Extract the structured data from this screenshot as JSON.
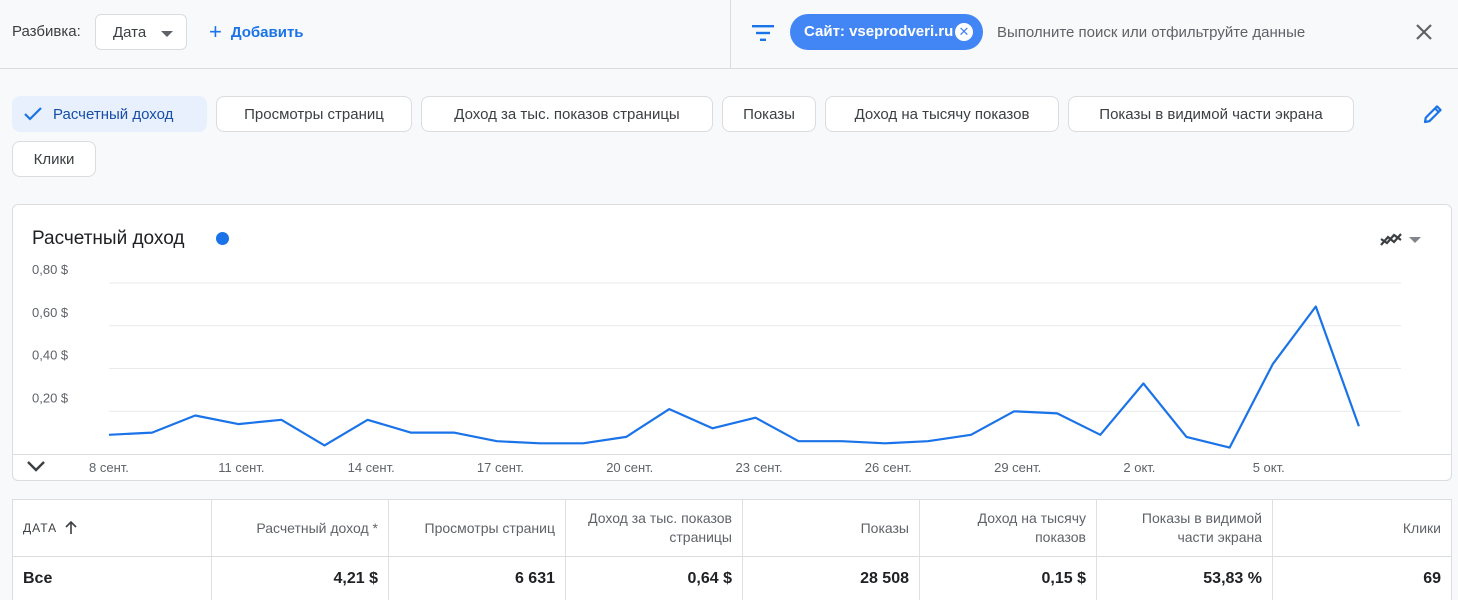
{
  "toolbar": {
    "breakdown_label": "Разбивка:",
    "date_select_value": "Дата",
    "add_label": "Добавить",
    "site_chip_label": "Сайт: vseprodveri.ru",
    "search_placeholder": "Выполните поиск или отфильтруйте данные"
  },
  "metric_chips": [
    {
      "label": "Расчетный доход",
      "selected": true
    },
    {
      "label": "Просмотры страниц",
      "selected": false
    },
    {
      "label": "Доход за тыс. показов страницы",
      "selected": false
    },
    {
      "label": "Показы",
      "selected": false
    },
    {
      "label": "Доход на тысячу показов",
      "selected": false
    },
    {
      "label": "Показы в видимой части экрана",
      "selected": false
    },
    {
      "label": "Клики",
      "selected": false
    }
  ],
  "chart_data": {
    "type": "line",
    "title": "Расчетный доход",
    "series": [
      {
        "name": "Расчетный доход",
        "color": "#1a73e8",
        "values": [
          0.09,
          0.1,
          0.18,
          0.14,
          0.16,
          0.04,
          0.16,
          0.1,
          0.1,
          0.06,
          0.05,
          0.05,
          0.08,
          0.21,
          0.12,
          0.17,
          0.06,
          0.06,
          0.05,
          0.06,
          0.09,
          0.2,
          0.19,
          0.09,
          0.33,
          0.08,
          0.03,
          0.42,
          0.69,
          0.13
        ]
      }
    ],
    "x_ticks": [
      "8 сент.",
      "11 сент.",
      "14 сент.",
      "17 сент.",
      "20 сент.",
      "23 сент.",
      "26 сент.",
      "29 сент.",
      "2 окт.",
      "5 окт."
    ],
    "x_tick_index": [
      0,
      3,
      6,
      9,
      12,
      15,
      18,
      21,
      24,
      27
    ],
    "y_ticks": [
      "0,20 $",
      "0,40 $",
      "0,60 $",
      "0,80 $"
    ],
    "y_tick_values": [
      0.2,
      0.4,
      0.6,
      0.8
    ],
    "ylim": [
      0,
      0.8
    ],
    "grid": true
  },
  "table": {
    "headers": [
      "Дата",
      "Расчетный доход *",
      "Просмотры страниц",
      "Доход за тыс. показов страницы",
      "Показы",
      "Доход на тысячу показов",
      "Показы в видимой части экрана",
      "Клики"
    ],
    "row": [
      "Все",
      "4,21 $",
      "6 631",
      "0,64 $",
      "28 508",
      "0,15 $",
      "53,83 %",
      "69"
    ]
  }
}
